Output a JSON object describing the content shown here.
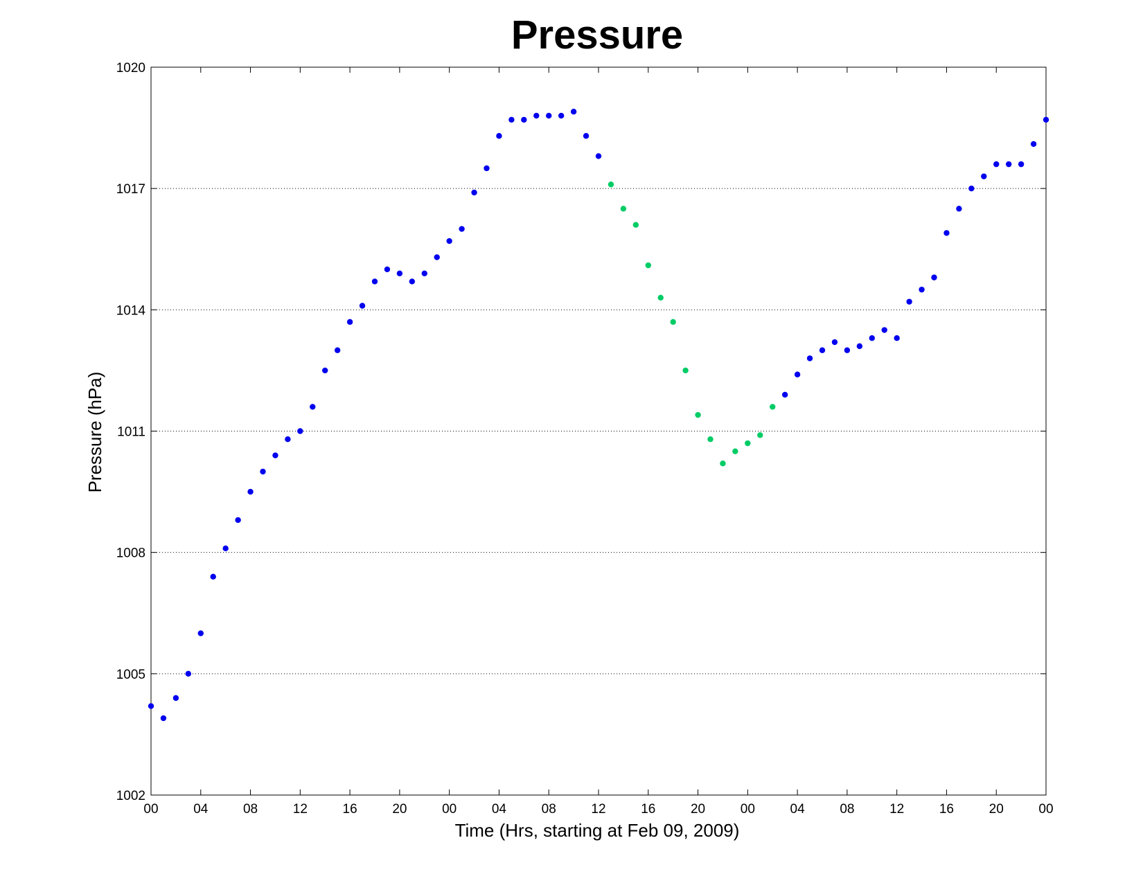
{
  "chart_data": {
    "type": "scatter",
    "title": "Pressure",
    "xlabel": "Time (Hrs, starting at Feb 09, 2009)",
    "ylabel": "Pressure (hPa)",
    "xlim": [
      0,
      72
    ],
    "ylim": [
      1002,
      1020
    ],
    "yticks": [
      1002,
      1005,
      1008,
      1011,
      1014,
      1017,
      1020
    ],
    "xticks": [
      {
        "x": 0,
        "label": "00"
      },
      {
        "x": 4,
        "label": "04"
      },
      {
        "x": 8,
        "label": "08"
      },
      {
        "x": 12,
        "label": "12"
      },
      {
        "x": 16,
        "label": "16"
      },
      {
        "x": 20,
        "label": "20"
      },
      {
        "x": 24,
        "label": "00"
      },
      {
        "x": 28,
        "label": "04"
      },
      {
        "x": 32,
        "label": "08"
      },
      {
        "x": 36,
        "label": "12"
      },
      {
        "x": 40,
        "label": "16"
      },
      {
        "x": 44,
        "label": "20"
      },
      {
        "x": 48,
        "label": "00"
      },
      {
        "x": 52,
        "label": "04"
      },
      {
        "x": 56,
        "label": "08"
      },
      {
        "x": 60,
        "label": "12"
      },
      {
        "x": 64,
        "label": "16"
      },
      {
        "x": 68,
        "label": "20"
      },
      {
        "x": 72,
        "label": "00"
      }
    ],
    "grid": "horizontal-dotted",
    "colors": {
      "blue": "#0000ee",
      "green": "#00cc66"
    },
    "series": [
      {
        "color": "blue",
        "x": [
          0,
          1,
          2,
          3,
          4,
          5,
          6,
          7,
          8,
          9,
          10,
          11,
          12,
          13,
          14,
          15,
          16,
          17,
          18,
          19,
          20,
          21,
          22,
          23,
          24,
          25,
          26,
          27,
          28,
          29,
          30,
          31,
          32,
          33,
          34,
          35,
          36
        ],
        "values": [
          1004.2,
          1003.9,
          1004.4,
          1005.0,
          1006.0,
          1007.4,
          1008.1,
          1008.8,
          1009.5,
          1010.0,
          1010.4,
          1010.8,
          1011.0,
          1011.6,
          1012.5,
          1013.0,
          1013.7,
          1014.1,
          1014.7,
          1015.0,
          1014.9,
          1014.7,
          1014.9,
          1015.3,
          1015.7,
          1016.0,
          1016.9,
          1017.5,
          1018.3,
          1018.7,
          1018.7,
          1018.8,
          1018.8,
          1018.8,
          1018.9,
          1018.3,
          1017.8
        ]
      },
      {
        "color": "green",
        "x": [
          37,
          38,
          39,
          40,
          41,
          42,
          43,
          44,
          45,
          46,
          47,
          48,
          49,
          50
        ],
        "values": [
          1017.1,
          1016.5,
          1016.1,
          1015.1,
          1014.3,
          1013.7,
          1012.5,
          1011.4,
          1010.8,
          1010.2,
          1010.5,
          1010.7,
          1010.9,
          1011.6
        ]
      },
      {
        "color": "blue",
        "x": [
          51,
          52,
          53,
          54,
          55,
          56,
          57,
          58,
          59,
          60,
          61,
          62,
          63,
          64,
          65,
          66,
          67,
          68,
          69,
          70,
          71,
          72
        ],
        "values": [
          1011.9,
          1012.4,
          1012.8,
          1013.0,
          1013.2,
          1013.0,
          1013.1,
          1013.3,
          1013.5,
          1013.3,
          1014.2,
          1014.5,
          1014.8,
          1015.9,
          1016.5,
          1017.0,
          1017.3,
          1017.6,
          1017.6,
          1017.6,
          1018.1,
          1018.7
        ]
      }
    ]
  }
}
